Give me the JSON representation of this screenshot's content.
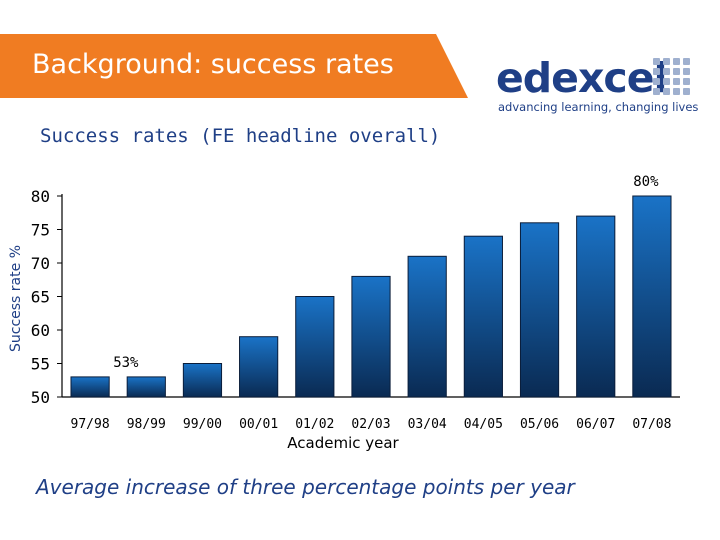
{
  "header": {
    "title": "Background: success rates",
    "banner_color": "#f07c22"
  },
  "logo": {
    "wordmark": "edexcel",
    "tagline": "advancing learning, changing lives",
    "icon": "grid-squares-icon",
    "color": "#1f3f86"
  },
  "subtitle": "Success rates (FE headline overall)",
  "chart_data": {
    "type": "bar",
    "categories": [
      "97/98",
      "98/99",
      "99/00",
      "00/01",
      "01/02",
      "02/03",
      "03/04",
      "04/05",
      "05/06",
      "06/07",
      "07/08"
    ],
    "values": [
      53,
      53,
      55,
      59,
      65,
      68,
      71,
      74,
      76,
      77,
      80
    ],
    "ylabel": "Success rate %",
    "xlabel": "Academic year",
    "ylim": [
      50,
      80
    ],
    "yticks": [
      "50",
      "55",
      "60",
      "65",
      "70",
      "75",
      "80"
    ],
    "annotations": [
      {
        "category": "97/98",
        "text": "53%"
      },
      {
        "category": "07/08",
        "text": "80%"
      }
    ],
    "bar_color_top": "#1a73c7",
    "bar_color_bottom": "#0a2a52",
    "grid": false,
    "legend": "none"
  },
  "footer": {
    "note": "Average increase of three percentage points per year"
  }
}
